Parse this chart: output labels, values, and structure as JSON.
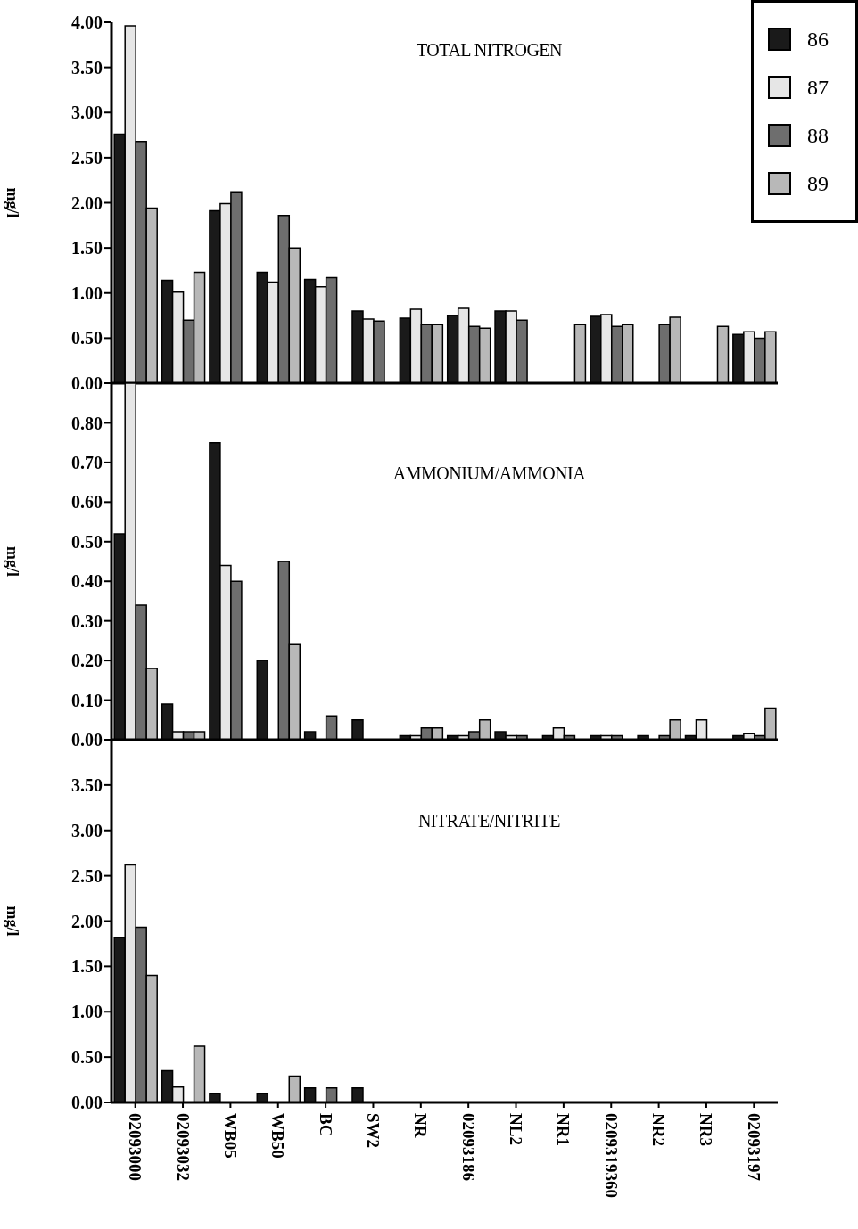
{
  "chart_data": [
    {
      "type": "bar",
      "title": "TOTAL NITROGEN",
      "ylabel": "mg/l",
      "categories": [
        null,
        null,
        null,
        null,
        null,
        null,
        null,
        null,
        null,
        null,
        null,
        null,
        null,
        null
      ],
      "series": [
        {
          "name": "86",
          "color": "#1a1a1a",
          "values": [
            2.76,
            1.14,
            1.91,
            1.23,
            1.15,
            0.8,
            0.72,
            0.75,
            0.8,
            null,
            0.74,
            null,
            null,
            0.54
          ]
        },
        {
          "name": "87",
          "color": "#e6e6e6",
          "values": [
            3.96,
            1.01,
            1.99,
            1.12,
            1.07,
            0.71,
            0.82,
            0.83,
            0.8,
            null,
            0.76,
            null,
            null,
            0.57
          ]
        },
        {
          "name": "88",
          "color": "#6e6e6e",
          "values": [
            2.68,
            0.7,
            2.12,
            1.86,
            1.17,
            0.69,
            0.65,
            0.63,
            0.7,
            null,
            0.63,
            0.65,
            null,
            0.5
          ]
        },
        {
          "name": "89",
          "color": "#b8b8b8",
          "values": [
            1.94,
            1.23,
            null,
            1.5,
            null,
            null,
            0.65,
            0.61,
            null,
            0.65,
            0.65,
            0.73,
            0.63,
            0.57
          ]
        }
      ],
      "ylim": [
        0,
        4
      ],
      "yticks": [
        {
          "value": 0,
          "label": "0.00"
        },
        {
          "value": 0.5,
          "label": "0.50"
        },
        {
          "value": 1,
          "label": "1.00"
        },
        {
          "value": 1.5,
          "label": "1.50"
        },
        {
          "value": 2,
          "label": "2.00"
        },
        {
          "value": 2.5,
          "label": "2.50"
        },
        {
          "value": 3,
          "label": "3.00"
        },
        {
          "value": 3.5,
          "label": "3.50"
        },
        {
          "value": 4,
          "label": "4.00"
        }
      ],
      "tick_labels": "y",
      "legend": "top right"
    },
    {
      "type": "bar",
      "title": "AMMONIUM/AMMONIA",
      "ylabel": "mg/l",
      "categories": [
        null,
        null,
        null,
        null,
        null,
        null,
        null,
        null,
        null,
        null,
        null,
        null,
        null,
        null
      ],
      "series": [
        {
          "name": "86",
          "color": "#1a1a1a",
          "values": [
            0.52,
            0.09,
            0.75,
            0.2,
            0.02,
            0.05,
            0.01,
            0.01,
            0.02,
            0.01,
            0.01,
            0.01,
            0.01,
            0.01
          ]
        },
        {
          "name": "87",
          "color": "#e6e6e6",
          "values": [
            0.9,
            0.02,
            0.44,
            null,
            null,
            null,
            0.01,
            0.01,
            0.01,
            0.03,
            0.01,
            null,
            0.05,
            0.015
          ]
        },
        {
          "name": "88",
          "color": "#6e6e6e",
          "values": [
            0.34,
            0.02,
            0.4,
            0.45,
            0.06,
            null,
            0.03,
            0.02,
            0.01,
            0.01,
            0.01,
            0.01,
            null,
            0.01
          ]
        },
        {
          "name": "89",
          "color": "#b8b8b8",
          "values": [
            0.18,
            0.02,
            null,
            0.24,
            null,
            null,
            0.03,
            0.05,
            null,
            null,
            null,
            0.05,
            null,
            0.08
          ]
        }
      ],
      "ylim": [
        0,
        0.9
      ],
      "yticks": [
        {
          "value": 0,
          "label": "0.00"
        },
        {
          "value": 0.1,
          "label": "0.10"
        },
        {
          "value": 0.2,
          "label": "0.20"
        },
        {
          "value": 0.3,
          "label": "0.30"
        },
        {
          "value": 0.4,
          "label": "0.40"
        },
        {
          "value": 0.5,
          "label": "0.50"
        },
        {
          "value": 0.6,
          "label": "0.60"
        },
        {
          "value": 0.7,
          "label": "0.70"
        },
        {
          "value": 0.8,
          "label": "0.80"
        }
      ],
      "tick_labels": "y"
    },
    {
      "type": "bar",
      "title": "NITRATE/NITRITE",
      "ylabel": "mg/l",
      "categories": [
        "02093000",
        "02093032",
        "WB05",
        "WB50",
        "BC",
        "SW2",
        "NR",
        "02093186",
        "NL2",
        "NR1",
        "0209319360",
        "NR2",
        "NR3",
        "02093197"
      ],
      "series": [
        {
          "name": "86",
          "color": "#1a1a1a",
          "values": [
            1.82,
            0.35,
            0.1,
            0.1,
            0.16,
            0.16,
            null,
            null,
            null,
            null,
            null,
            null,
            null,
            null
          ]
        },
        {
          "name": "87",
          "color": "#e6e6e6",
          "values": [
            2.62,
            0.17,
            null,
            null,
            null,
            null,
            null,
            null,
            null,
            null,
            null,
            null,
            null,
            null
          ]
        },
        {
          "name": "88",
          "color": "#6e6e6e",
          "values": [
            1.93,
            null,
            null,
            null,
            0.16,
            null,
            null,
            null,
            null,
            null,
            null,
            null,
            null,
            null
          ]
        },
        {
          "name": "89",
          "color": "#b8b8b8",
          "values": [
            1.4,
            0.62,
            null,
            0.29,
            null,
            null,
            null,
            null,
            null,
            null,
            null,
            null,
            null,
            null
          ]
        }
      ],
      "ylim": [
        0,
        4
      ],
      "yticks": [
        {
          "value": 0,
          "label": "0.00"
        },
        {
          "value": 0.5,
          "label": "0.50"
        },
        {
          "value": 1,
          "label": "1.00"
        },
        {
          "value": 1.5,
          "label": "1.50"
        },
        {
          "value": 2,
          "label": "2.00"
        },
        {
          "value": 2.5,
          "label": "2.50"
        },
        {
          "value": 3,
          "label": "3.00"
        },
        {
          "value": 3.5,
          "label": "3.50"
        }
      ]
    }
  ]
}
